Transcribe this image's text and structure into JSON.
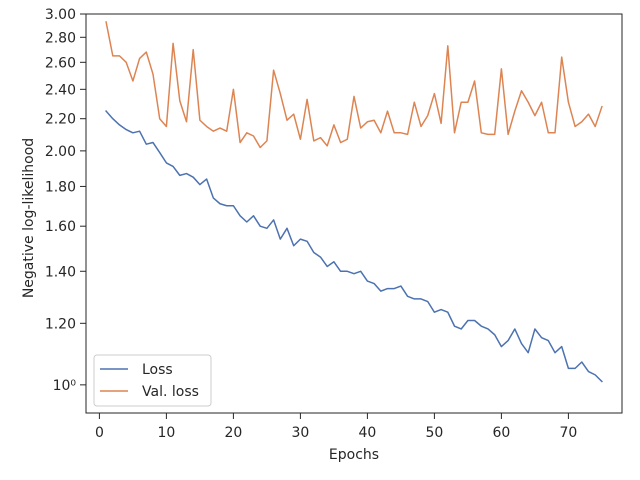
{
  "chart_data": {
    "type": "line",
    "xlabel": "Epochs",
    "ylabel": "Negative log-likelihood",
    "y_scale": "log",
    "xlim": [
      -2,
      78
    ],
    "ylim": [
      0.92,
      3.0
    ],
    "grid": false,
    "legend_position": "lower-left",
    "x_ticks": [
      0,
      10,
      20,
      30,
      40,
      50,
      60,
      70
    ],
    "x_tick_labels": [
      "0",
      "10",
      "20",
      "30",
      "40",
      "50",
      "60",
      "70"
    ],
    "y_ticks": [
      1.0,
      1.2,
      1.4,
      1.6,
      1.8,
      2.0,
      2.2,
      2.4,
      2.6,
      2.8,
      3.0
    ],
    "y_tick_labels": [
      "10⁰",
      "1.20",
      "1.40",
      "1.60",
      "1.80",
      "2.00",
      "2.20",
      "2.40",
      "2.60",
      "2.80",
      "3.00"
    ],
    "x": [
      1,
      2,
      3,
      4,
      5,
      6,
      7,
      8,
      9,
      10,
      11,
      12,
      13,
      14,
      15,
      16,
      17,
      18,
      19,
      20,
      21,
      22,
      23,
      24,
      25,
      26,
      27,
      28,
      29,
      30,
      31,
      32,
      33,
      34,
      35,
      36,
      37,
      38,
      39,
      40,
      41,
      42,
      43,
      44,
      45,
      46,
      47,
      48,
      49,
      50,
      51,
      52,
      53,
      54,
      55,
      56,
      57,
      58,
      59,
      60,
      61,
      62,
      63,
      64,
      65,
      66,
      67,
      68,
      69,
      70,
      71,
      72,
      73,
      74,
      75
    ],
    "series": [
      {
        "name": "Loss",
        "color": "#4c72b0",
        "values": [
          2.25,
          2.2,
          2.16,
          2.13,
          2.11,
          2.12,
          2.04,
          2.05,
          1.99,
          1.93,
          1.91,
          1.86,
          1.87,
          1.85,
          1.81,
          1.84,
          1.74,
          1.71,
          1.7,
          1.7,
          1.65,
          1.62,
          1.65,
          1.6,
          1.59,
          1.63,
          1.54,
          1.59,
          1.51,
          1.54,
          1.53,
          1.48,
          1.46,
          1.42,
          1.44,
          1.4,
          1.4,
          1.39,
          1.4,
          1.36,
          1.35,
          1.32,
          1.33,
          1.33,
          1.34,
          1.3,
          1.29,
          1.29,
          1.28,
          1.24,
          1.25,
          1.24,
          1.19,
          1.18,
          1.21,
          1.21,
          1.19,
          1.18,
          1.16,
          1.12,
          1.14,
          1.18,
          1.13,
          1.1,
          1.18,
          1.15,
          1.14,
          1.1,
          1.12,
          1.05,
          1.05,
          1.07,
          1.04,
          1.03,
          1.01
        ]
      },
      {
        "name": "Val. loss",
        "color": "#dd8452",
        "values": [
          2.93,
          2.65,
          2.65,
          2.6,
          2.46,
          2.63,
          2.68,
          2.51,
          2.2,
          2.15,
          2.75,
          2.32,
          2.18,
          2.7,
          2.19,
          2.15,
          2.12,
          2.14,
          2.12,
          2.4,
          2.05,
          2.11,
          2.09,
          2.02,
          2.06,
          2.54,
          2.37,
          2.19,
          2.23,
          2.07,
          2.33,
          2.06,
          2.08,
          2.03,
          2.16,
          2.05,
          2.07,
          2.35,
          2.14,
          2.18,
          2.19,
          2.11,
          2.25,
          2.11,
          2.11,
          2.1,
          2.31,
          2.15,
          2.22,
          2.37,
          2.17,
          2.73,
          2.11,
          2.31,
          2.31,
          2.46,
          2.11,
          2.1,
          2.1,
          2.55,
          2.1,
          2.25,
          2.39,
          2.31,
          2.22,
          2.31,
          2.11,
          2.11,
          2.64,
          2.31,
          2.15,
          2.18,
          2.23,
          2.15,
          2.28
        ]
      }
    ]
  }
}
